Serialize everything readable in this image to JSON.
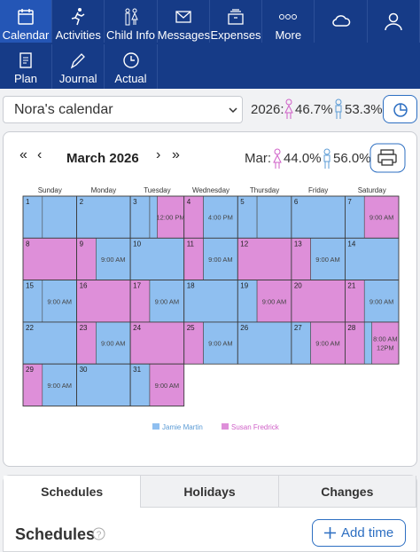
{
  "nav": {
    "primary": [
      "Calendar",
      "Activities",
      "Child Info",
      "Messages",
      "Expenses",
      "More"
    ],
    "secondary": [
      "Plan",
      "Journal",
      "Actual"
    ]
  },
  "toolbar": {
    "calendar_select": "Nora's calendar",
    "year_label": "2026:",
    "female_pct": "46.7%",
    "male_pct": "53.3%"
  },
  "calendar": {
    "month": "March 2026",
    "month_label": "Mar:",
    "female_pct": "44.0%",
    "male_pct": "56.0%",
    "weekdays": [
      "Sunday",
      "Monday",
      "Tuesday",
      "Wednesday",
      "Thursday",
      "Friday",
      "Saturday"
    ],
    "parents": [
      {
        "name": "Jamie Martin",
        "color": "#8fbff0",
        "text_color": "#5b9bd5"
      },
      {
        "name": "Susan Fredrick",
        "color": "#de8fd9",
        "text_color": "#cf5fc7"
      }
    ],
    "days": [
      {
        "day": "1",
        "parents": [
          0,
          0
        ]
      },
      {
        "day": "2",
        "parents": [
          0
        ]
      },
      {
        "day": "3",
        "parents": [
          0,
          0,
          1
        ],
        "times": [
          "12:00 PM"
        ]
      },
      {
        "day": "4",
        "parents": [
          1,
          0
        ],
        "times": [
          "4:00 PM"
        ]
      },
      {
        "day": "5",
        "parents": [
          0,
          0
        ]
      },
      {
        "day": "6",
        "parents": [
          0
        ]
      },
      {
        "day": "7",
        "parents": [
          0,
          1
        ],
        "times": [
          "9:00 AM"
        ]
      },
      {
        "day": "8",
        "parents": [
          1
        ]
      },
      {
        "day": "9",
        "parents": [
          1,
          0
        ],
        "times": [
          "9:00 AM"
        ]
      },
      {
        "day": "10",
        "parents": [
          0
        ]
      },
      {
        "day": "11",
        "parents": [
          1,
          0
        ],
        "times": [
          "9:00 AM"
        ]
      },
      {
        "day": "12",
        "parents": [
          1
        ]
      },
      {
        "day": "13",
        "parents": [
          1,
          0
        ],
        "times": [
          "9:00 AM"
        ]
      },
      {
        "day": "14",
        "parents": [
          0
        ]
      },
      {
        "day": "15",
        "parents": [
          0,
          0
        ],
        "times": [
          "9:00 AM"
        ]
      },
      {
        "day": "16",
        "parents": [
          1
        ]
      },
      {
        "day": "17",
        "parents": [
          1,
          0
        ],
        "times": [
          "9:00 AM"
        ]
      },
      {
        "day": "18",
        "parents": [
          0
        ]
      },
      {
        "day": "19",
        "parents": [
          0,
          1
        ],
        "times": [
          "9:00 AM"
        ]
      },
      {
        "day": "20",
        "parents": [
          1
        ]
      },
      {
        "day": "21",
        "parents": [
          1,
          0
        ],
        "times": [
          "9:00 AM"
        ]
      },
      {
        "day": "22",
        "parents": [
          0
        ]
      },
      {
        "day": "23",
        "parents": [
          1,
          0
        ],
        "times": [
          "9:00 AM"
        ]
      },
      {
        "day": "24",
        "parents": [
          1
        ]
      },
      {
        "day": "25",
        "parents": [
          1,
          0
        ],
        "times": [
          "9:00 AM"
        ]
      },
      {
        "day": "26",
        "parents": [
          0
        ]
      },
      {
        "day": "27",
        "parents": [
          0,
          1
        ],
        "times": [
          "9:00 AM"
        ]
      },
      {
        "day": "28",
        "parents": [
          1,
          0,
          1
        ],
        "times": [
          "8:00 AM",
          "12PM"
        ]
      },
      {
        "day": "29",
        "parents": [
          1,
          0
        ],
        "times": [
          "9:00 AM"
        ]
      },
      {
        "day": "30",
        "parents": [
          0
        ]
      },
      {
        "day": "31",
        "parents": [
          0,
          1
        ],
        "times": [
          "9:00 AM"
        ]
      }
    ]
  },
  "tabs": [
    "Schedules",
    "Holidays",
    "Changes"
  ],
  "section": {
    "title": "Schedules",
    "add_button": "Add time"
  }
}
